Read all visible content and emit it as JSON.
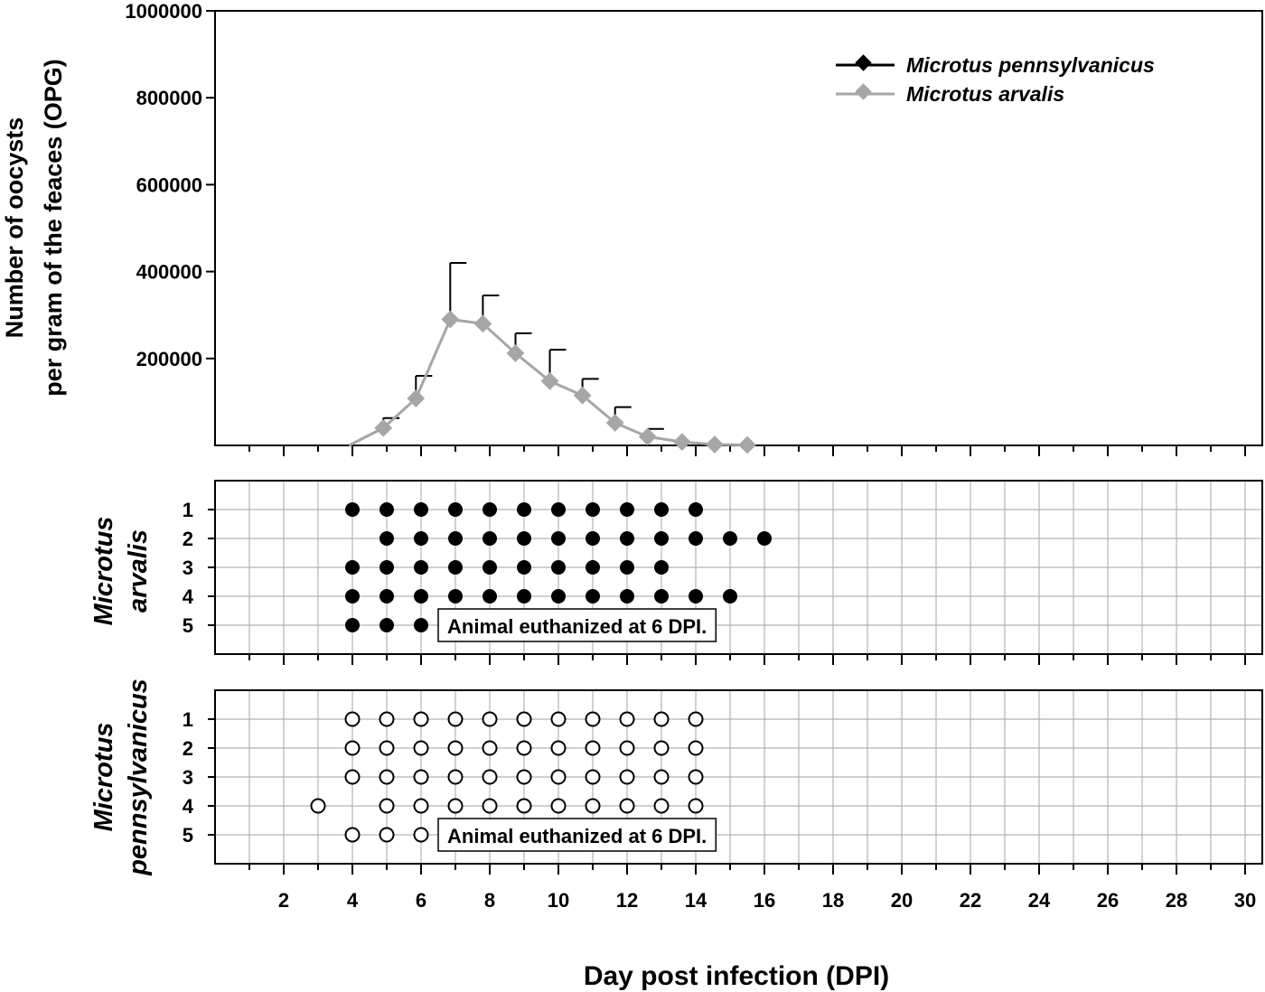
{
  "chart_data": [
    {
      "type": "line",
      "panel": "top",
      "ylabel_line1": "Number of oocysts",
      "ylabel_line2": "per gram of the feaces (OPG)",
      "xlabel": "",
      "xlim": [
        0,
        30.5
      ],
      "ylim": [
        0,
        1000000
      ],
      "yticks": [
        "200000",
        "400000",
        "600000",
        "800000",
        "1000000"
      ],
      "ytick_values": [
        200000,
        400000,
        600000,
        800000,
        1000000
      ],
      "legend": {
        "placement": "top-right",
        "entries": [
          "Microtus pennsylvanicus",
          "Microtus arvalis"
        ]
      },
      "series": [
        {
          "name": "Microtus pennsylvanicus",
          "color": "#000000",
          "x": [],
          "values": []
        },
        {
          "name": "Microtus arvalis",
          "color": "#a6a6a6",
          "x": [
            3.9,
            4.9,
            5.85,
            6.85,
            7.8,
            8.75,
            9.75,
            10.7,
            11.65,
            12.6,
            13.6,
            14.55,
            15.5
          ],
          "values": [
            0,
            40000,
            108000,
            290000,
            280000,
            212000,
            148000,
            115000,
            52000,
            20000,
            8000,
            2000,
            1000
          ],
          "error_upper": [
            null,
            63000,
            160000,
            420000,
            345000,
            258000,
            220000,
            153000,
            88000,
            38000,
            null,
            null,
            null
          ]
        }
      ]
    },
    {
      "type": "scatter",
      "panel": "middle",
      "title_line1": "Microtus",
      "title_line2": "arvalis",
      "marker": "filled",
      "rows": [
        "1",
        "2",
        "3",
        "4",
        "5"
      ],
      "row_days": [
        [
          4,
          5,
          6,
          7,
          8,
          9,
          10,
          11,
          12,
          13,
          14
        ],
        [
          5,
          6,
          7,
          8,
          9,
          10,
          11,
          12,
          13,
          14,
          15,
          16
        ],
        [
          4,
          5,
          6,
          7,
          8,
          9,
          10,
          11,
          12,
          13
        ],
        [
          4,
          5,
          6,
          7,
          8,
          9,
          10,
          11,
          12,
          13,
          14,
          15
        ],
        [
          4,
          5,
          6
        ]
      ],
      "annotation": {
        "text": "Animal euthanized at 6 DPI.",
        "row": 5,
        "start_day": 6.5
      }
    },
    {
      "type": "scatter",
      "panel": "bottom",
      "title_line1": "Microtus",
      "title_line2": "pennsylvanicus",
      "marker": "open",
      "rows": [
        "1",
        "2",
        "3",
        "4",
        "5"
      ],
      "row_days": [
        [
          4,
          5,
          6,
          7,
          8,
          9,
          10,
          11,
          12,
          13,
          14
        ],
        [
          4,
          5,
          6,
          7,
          8,
          9,
          10,
          11,
          12,
          13,
          14
        ],
        [
          4,
          5,
          6,
          7,
          8,
          9,
          10,
          11,
          12,
          13,
          14
        ],
        [
          3,
          5,
          6,
          7,
          8,
          9,
          10,
          11,
          12,
          13,
          14
        ],
        [
          4,
          5,
          6
        ]
      ],
      "annotation": {
        "text": "Animal euthanized at 6 DPI.",
        "row": 5,
        "start_day": 6.5
      }
    }
  ],
  "x_axis": {
    "title": "Day post infection (DPI)",
    "xlim": [
      0,
      30.5
    ],
    "tick_labels": [
      "2",
      "4",
      "6",
      "8",
      "10",
      "12",
      "14",
      "16",
      "18",
      "20",
      "22",
      "24",
      "26",
      "28",
      "30"
    ],
    "tick_values": [
      2,
      4,
      6,
      8,
      10,
      12,
      14,
      16,
      18,
      20,
      22,
      24,
      26,
      28,
      30
    ]
  },
  "colors": {
    "series_black": "#000000",
    "series_gray": "#a6a6a6",
    "grid": "#b3b3b3"
  }
}
